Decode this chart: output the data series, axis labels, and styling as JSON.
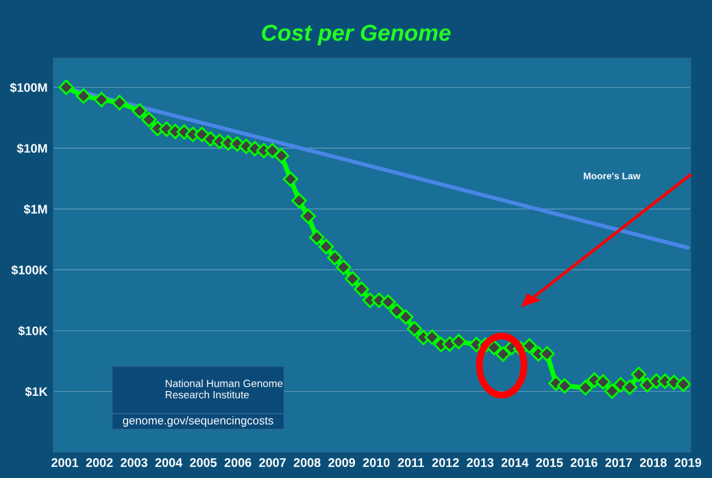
{
  "chart_data": {
    "type": "line",
    "title": "Cost per Genome",
    "log": "y",
    "grid": "y",
    "legend": false,
    "line_style": "solid",
    "xlim": [
      2000.67,
      2019.08
    ],
    "xticks": [
      2001,
      2002,
      2003,
      2004,
      2005,
      2006,
      2007,
      2008,
      2009,
      2010,
      2011,
      2012,
      2013,
      2014,
      2015,
      2016,
      2017,
      2018,
      2019
    ],
    "ylim": [
      100,
      300000000
    ],
    "yticks": [
      {
        "value": 1000,
        "label": "$1K"
      },
      {
        "value": 10000,
        "label": "$10K"
      },
      {
        "value": 100000,
        "label": "$100K"
      },
      {
        "value": 1000000,
        "label": "$1M"
      },
      {
        "value": 10000000,
        "label": "$10M"
      },
      {
        "value": 100000000,
        "label": "$100M"
      }
    ],
    "annotations": [
      "National Human Genome Research Institute",
      "genome.gov/sequencingcosts"
    ],
    "series": [
      {
        "color": "#00ff00",
        "marker": "diamond",
        "x": [
          2001.04,
          2001.54,
          2002.06,
          2002.58,
          2003.16,
          2003.43,
          2003.68,
          2003.94,
          2004.19,
          2004.45,
          2004.7,
          2004.96,
          2005.21,
          2005.47,
          2005.72,
          2005.98,
          2006.24,
          2006.49,
          2006.75,
          2007.0,
          2007.26,
          2007.52,
          2007.77,
          2008.03,
          2008.28,
          2008.55,
          2008.8,
          2009.05,
          2009.31,
          2009.57,
          2009.82,
          2010.08,
          2010.34,
          2010.59,
          2010.85,
          2011.1,
          2011.36,
          2011.61,
          2011.87,
          2012.12,
          2012.38,
          2012.89,
          2013.15,
          2013.4,
          2013.66,
          2013.91,
          2014.17,
          2014.42,
          2014.68,
          2014.93,
          2015.19,
          2015.44,
          2016.04,
          2016.3,
          2016.55,
          2016.81,
          2017.06,
          2017.32,
          2017.58,
          2017.83,
          2018.09,
          2018.34,
          2018.6,
          2018.87
        ],
        "values": [
          100000000,
          72000000,
          63000000,
          56000000,
          41000000,
          29500000,
          21000000,
          20500000,
          18800000,
          18400000,
          16800000,
          16800000,
          14100000,
          12900000,
          12200000,
          11700000,
          10700000,
          9800000,
          9100000,
          9100000,
          7500000,
          3100000,
          1370000,
          760000,
          340000,
          240000,
          158000,
          110000,
          71000,
          48000,
          31500,
          31500,
          29500,
          21000,
          16700,
          10700,
          7700,
          7800,
          5900,
          6000,
          6600,
          5900,
          5750,
          5250,
          4100,
          5250,
          5000,
          5600,
          4150,
          4150,
          1360,
          1230,
          1150,
          1530,
          1430,
          1010,
          1290,
          1170,
          1900,
          1280,
          1470,
          1470,
          1400,
          1310
        ]
      },
      {
        "name": "Moore's Law",
        "color": "#4a86e8",
        "marker": "none",
        "x": [
          2001.2,
          2019
        ],
        "values": [
          93000000,
          230000
        ]
      }
    ]
  }
}
